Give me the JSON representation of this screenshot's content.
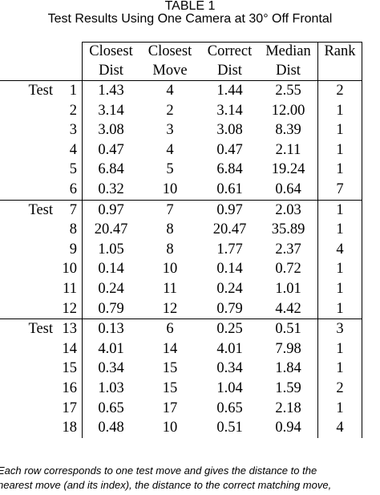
{
  "caption": {
    "label": "TABLE 1",
    "title": "Test Results Using One Camera at 30° Off Frontal"
  },
  "table": {
    "headers": {
      "row1": [
        "Closest",
        "Closest",
        "Correct",
        "Median",
        "Rank"
      ],
      "row2": [
        "Dist",
        "Move",
        "Dist",
        "Dist",
        ""
      ]
    },
    "sections": [
      {
        "label": "Test",
        "rows": [
          {
            "n": "1",
            "closest_dist": "1.43",
            "closest_move": "4",
            "correct_dist": "1.44",
            "median_dist": "2.55",
            "rank": "2"
          },
          {
            "n": "2",
            "closest_dist": "3.14",
            "closest_move": "2",
            "correct_dist": "3.14",
            "median_dist": "12.00",
            "rank": "1"
          },
          {
            "n": "3",
            "closest_dist": "3.08",
            "closest_move": "3",
            "correct_dist": "3.08",
            "median_dist": "8.39",
            "rank": "1"
          },
          {
            "n": "4",
            "closest_dist": "0.47",
            "closest_move": "4",
            "correct_dist": "0.47",
            "median_dist": "2.11",
            "rank": "1"
          },
          {
            "n": "5",
            "closest_dist": "6.84",
            "closest_move": "5",
            "correct_dist": "6.84",
            "median_dist": "19.24",
            "rank": "1"
          },
          {
            "n": "6",
            "closest_dist": "0.32",
            "closest_move": "10",
            "correct_dist": "0.61",
            "median_dist": "0.64",
            "rank": "7"
          }
        ]
      },
      {
        "label": "Test",
        "rows": [
          {
            "n": "7",
            "closest_dist": "0.97",
            "closest_move": "7",
            "correct_dist": "0.97",
            "median_dist": "2.03",
            "rank": "1"
          },
          {
            "n": "8",
            "closest_dist": "20.47",
            "closest_move": "8",
            "correct_dist": "20.47",
            "median_dist": "35.89",
            "rank": "1"
          },
          {
            "n": "9",
            "closest_dist": "1.05",
            "closest_move": "8",
            "correct_dist": "1.77",
            "median_dist": "2.37",
            "rank": "4"
          },
          {
            "n": "10",
            "closest_dist": "0.14",
            "closest_move": "10",
            "correct_dist": "0.14",
            "median_dist": "0.72",
            "rank": "1"
          },
          {
            "n": "11",
            "closest_dist": "0.24",
            "closest_move": "11",
            "correct_dist": "0.24",
            "median_dist": "1.01",
            "rank": "1"
          },
          {
            "n": "12",
            "closest_dist": "0.79",
            "closest_move": "12",
            "correct_dist": "0.79",
            "median_dist": "4.42",
            "rank": "1"
          }
        ]
      },
      {
        "label": "Test",
        "rows": [
          {
            "n": "13",
            "closest_dist": "0.13",
            "closest_move": "6",
            "correct_dist": "0.25",
            "median_dist": "0.51",
            "rank": "3"
          },
          {
            "n": "14",
            "closest_dist": "4.01",
            "closest_move": "14",
            "correct_dist": "4.01",
            "median_dist": "7.98",
            "rank": "1"
          },
          {
            "n": "15",
            "closest_dist": "0.34",
            "closest_move": "15",
            "correct_dist": "0.34",
            "median_dist": "1.84",
            "rank": "1"
          },
          {
            "n": "16",
            "closest_dist": "1.03",
            "closest_move": "15",
            "correct_dist": "1.04",
            "median_dist": "1.59",
            "rank": "2"
          },
          {
            "n": "17",
            "closest_dist": "0.65",
            "closest_move": "17",
            "correct_dist": "0.65",
            "median_dist": "2.18",
            "rank": "1"
          },
          {
            "n": "18",
            "closest_dist": "0.48",
            "closest_move": "10",
            "correct_dist": "0.51",
            "median_dist": "0.94",
            "rank": "4"
          }
        ]
      }
    ]
  },
  "footnote": {
    "line1": "Each row corresponds to one test move and gives the distance to the",
    "line2": "nearest move (and its index), the distance to the correct matching move,"
  }
}
